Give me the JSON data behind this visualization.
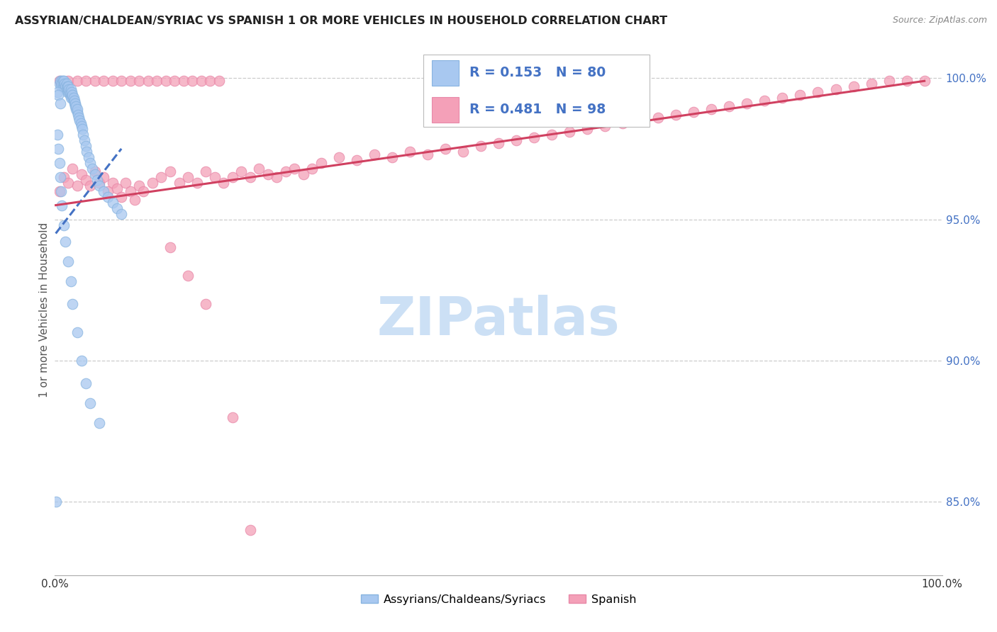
{
  "title": "ASSYRIAN/CHALDEAN/SYRIAC VS SPANISH 1 OR MORE VEHICLES IN HOUSEHOLD CORRELATION CHART",
  "source": "Source: ZipAtlas.com",
  "ylabel": "1 or more Vehicles in Household",
  "ytick_values": [
    0.85,
    0.9,
    0.95,
    1.0
  ],
  "xlim": [
    0.0,
    1.0
  ],
  "ylim": [
    0.824,
    1.012
  ],
  "legend_label1": "Assyrians/Chaldeans/Syriacs",
  "legend_label2": "Spanish",
  "R1": 0.153,
  "N1": 80,
  "R2": 0.481,
  "N2": 98,
  "color1": "#a8c8f0",
  "color2": "#f4a0b8",
  "trendline1_color": "#4472c4",
  "trendline2_color": "#d04060",
  "watermark_color": "#cce0f5",
  "blue_scatter_x": [
    0.005,
    0.006,
    0.007,
    0.008,
    0.008,
    0.009,
    0.009,
    0.01,
    0.01,
    0.011,
    0.011,
    0.012,
    0.012,
    0.013,
    0.013,
    0.014,
    0.014,
    0.015,
    0.015,
    0.016,
    0.016,
    0.017,
    0.017,
    0.018,
    0.018,
    0.019,
    0.019,
    0.02,
    0.02,
    0.021,
    0.021,
    0.022,
    0.022,
    0.023,
    0.023,
    0.024,
    0.024,
    0.025,
    0.025,
    0.026,
    0.027,
    0.028,
    0.029,
    0.03,
    0.031,
    0.032,
    0.033,
    0.035,
    0.036,
    0.038,
    0.04,
    0.042,
    0.045,
    0.048,
    0.05,
    0.055,
    0.06,
    0.065,
    0.07,
    0.075,
    0.003,
    0.004,
    0.005,
    0.006,
    0.007,
    0.008,
    0.01,
    0.012,
    0.015,
    0.018,
    0.02,
    0.025,
    0.03,
    0.035,
    0.04,
    0.05,
    0.003,
    0.004,
    0.006,
    0.001
  ],
  "blue_scatter_y": [
    0.998,
    0.999,
    0.997,
    0.999,
    0.998,
    0.999,
    0.997,
    0.998,
    0.999,
    0.997,
    0.998,
    0.996,
    0.997,
    0.998,
    0.996,
    0.997,
    0.995,
    0.996,
    0.997,
    0.995,
    0.996,
    0.994,
    0.995,
    0.996,
    0.993,
    0.994,
    0.995,
    0.993,
    0.994,
    0.992,
    0.993,
    0.991,
    0.992,
    0.99,
    0.991,
    0.989,
    0.99,
    0.988,
    0.989,
    0.987,
    0.986,
    0.985,
    0.984,
    0.983,
    0.982,
    0.98,
    0.978,
    0.976,
    0.974,
    0.972,
    0.97,
    0.968,
    0.966,
    0.964,
    0.962,
    0.96,
    0.958,
    0.956,
    0.954,
    0.952,
    0.98,
    0.975,
    0.97,
    0.965,
    0.96,
    0.955,
    0.948,
    0.942,
    0.935,
    0.928,
    0.92,
    0.91,
    0.9,
    0.892,
    0.885,
    0.878,
    0.995,
    0.994,
    0.991,
    0.85
  ],
  "pink_scatter_x": [
    0.005,
    0.01,
    0.015,
    0.02,
    0.025,
    0.03,
    0.035,
    0.04,
    0.045,
    0.05,
    0.055,
    0.06,
    0.065,
    0.07,
    0.075,
    0.08,
    0.085,
    0.09,
    0.095,
    0.1,
    0.11,
    0.12,
    0.13,
    0.14,
    0.15,
    0.16,
    0.17,
    0.18,
    0.19,
    0.2,
    0.21,
    0.22,
    0.23,
    0.24,
    0.25,
    0.26,
    0.27,
    0.28,
    0.29,
    0.3,
    0.32,
    0.34,
    0.36,
    0.38,
    0.4,
    0.42,
    0.44,
    0.46,
    0.48,
    0.5,
    0.52,
    0.54,
    0.56,
    0.58,
    0.6,
    0.62,
    0.64,
    0.66,
    0.68,
    0.7,
    0.72,
    0.74,
    0.76,
    0.78,
    0.8,
    0.82,
    0.84,
    0.86,
    0.88,
    0.9,
    0.92,
    0.94,
    0.96,
    0.98,
    0.005,
    0.015,
    0.025,
    0.035,
    0.045,
    0.055,
    0.065,
    0.075,
    0.085,
    0.095,
    0.105,
    0.115,
    0.125,
    0.135,
    0.145,
    0.155,
    0.165,
    0.175,
    0.185,
    0.13,
    0.15,
    0.17,
    0.2,
    0.22
  ],
  "pink_scatter_y": [
    0.96,
    0.965,
    0.963,
    0.968,
    0.962,
    0.966,
    0.964,
    0.962,
    0.967,
    0.963,
    0.965,
    0.96,
    0.963,
    0.961,
    0.958,
    0.963,
    0.96,
    0.957,
    0.962,
    0.96,
    0.963,
    0.965,
    0.967,
    0.963,
    0.965,
    0.963,
    0.967,
    0.965,
    0.963,
    0.965,
    0.967,
    0.965,
    0.968,
    0.966,
    0.965,
    0.967,
    0.968,
    0.966,
    0.968,
    0.97,
    0.972,
    0.971,
    0.973,
    0.972,
    0.974,
    0.973,
    0.975,
    0.974,
    0.976,
    0.977,
    0.978,
    0.979,
    0.98,
    0.981,
    0.982,
    0.983,
    0.984,
    0.985,
    0.986,
    0.987,
    0.988,
    0.989,
    0.99,
    0.991,
    0.992,
    0.993,
    0.994,
    0.995,
    0.996,
    0.997,
    0.998,
    0.999,
    0.999,
    0.999,
    0.999,
    0.999,
    0.999,
    0.999,
    0.999,
    0.999,
    0.999,
    0.999,
    0.999,
    0.999,
    0.999,
    0.999,
    0.999,
    0.999,
    0.999,
    0.999,
    0.999,
    0.999,
    0.999,
    0.94,
    0.93,
    0.92,
    0.88,
    0.84
  ],
  "trendline1_x": [
    0.001,
    0.075
  ],
  "trendline1_y": [
    0.945,
    0.975
  ],
  "trendline2_x": [
    0.001,
    0.98
  ],
  "trendline2_y": [
    0.955,
    0.999
  ]
}
